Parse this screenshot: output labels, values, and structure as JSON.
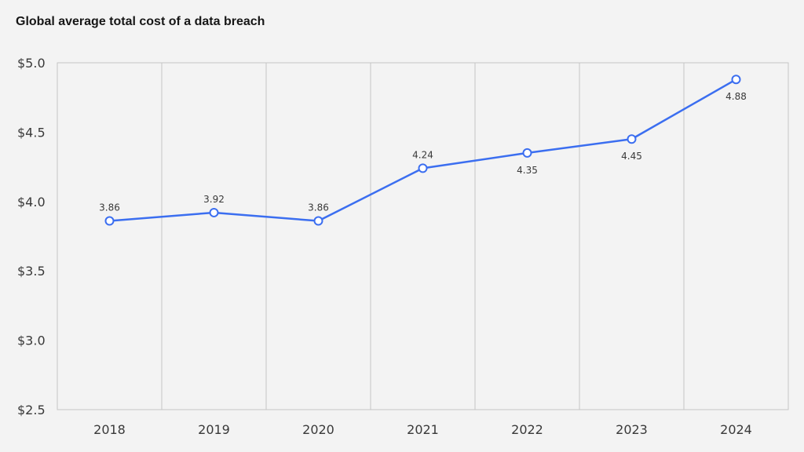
{
  "chart_data": {
    "type": "line",
    "title": "Global average total cost of a data breach",
    "xlabel": "",
    "ylabel": "",
    "categories": [
      "2018",
      "2019",
      "2020",
      "2021",
      "2022",
      "2023",
      "2024"
    ],
    "series": [
      {
        "values": [
          3.86,
          3.92,
          3.86,
          4.24,
          4.35,
          4.45,
          4.88
        ],
        "labels": [
          "3.86",
          "3.92",
          "3.86",
          "4.24",
          "4.35",
          "4.45",
          "4.88"
        ],
        "label_positions": [
          "above",
          "above",
          "above",
          "above",
          "below",
          "below",
          "below"
        ],
        "color": "#3b6ef0"
      }
    ],
    "ylim": [
      2.5,
      5.0
    ],
    "yticks": [
      2.5,
      3.0,
      3.5,
      4.0,
      4.5,
      5.0
    ],
    "ytick_labels": [
      "$2.5",
      "$3.0",
      "$3.5",
      "$4.0",
      "$4.5",
      "$5.0"
    ],
    "grid": {
      "vertical": true,
      "horizontal": false
    },
    "legend": "none",
    "colors": {
      "background": "#f3f3f3",
      "grid": "#c6c6c6",
      "text": "#393939",
      "marker_fill": "#ffffff"
    }
  }
}
